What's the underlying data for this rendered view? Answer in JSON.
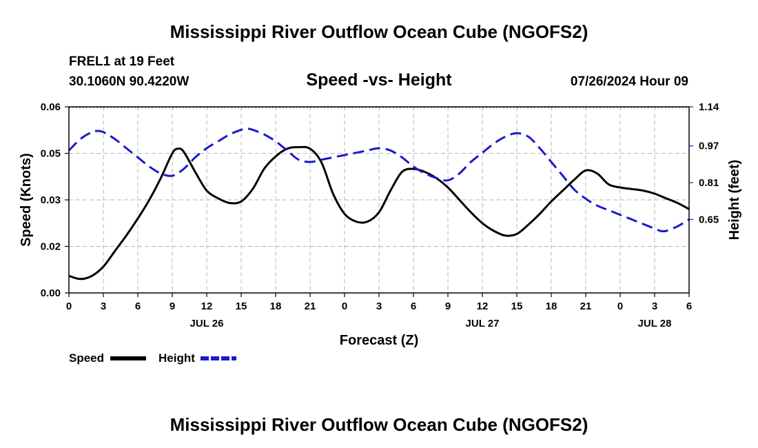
{
  "header": {
    "title": "Mississippi River Outflow Ocean Cube (NGOFS2)",
    "station": "FREL1 at 19 Feet",
    "coords": "30.1060N  90.4220W",
    "subtitle": "Speed -vs- Height",
    "datetime": "07/26/2024 Hour 09"
  },
  "footer": {
    "title": "Mississippi River Outflow Ocean Cube (NGOFS2)"
  },
  "chart_data": {
    "type": "line",
    "title": "Speed -vs- Height",
    "xlabel": "Forecast (Z)",
    "ylabel_left": "Speed (Knots)",
    "ylabel_right": "Height (feet)",
    "x_range_hours": [
      0,
      54
    ],
    "x_ticks": [
      {
        "h": 0,
        "label": "0"
      },
      {
        "h": 3,
        "label": "3"
      },
      {
        "h": 6,
        "label": "6"
      },
      {
        "h": 9,
        "label": "9"
      },
      {
        "h": 12,
        "label": "12"
      },
      {
        "h": 15,
        "label": "15"
      },
      {
        "h": 18,
        "label": "18"
      },
      {
        "h": 21,
        "label": "21"
      },
      {
        "h": 24,
        "label": "0"
      },
      {
        "h": 27,
        "label": "3"
      },
      {
        "h": 30,
        "label": "6"
      },
      {
        "h": 33,
        "label": "9"
      },
      {
        "h": 36,
        "label": "12"
      },
      {
        "h": 39,
        "label": "15"
      },
      {
        "h": 42,
        "label": "18"
      },
      {
        "h": 45,
        "label": "21"
      },
      {
        "h": 48,
        "label": "0"
      },
      {
        "h": 51,
        "label": "3"
      },
      {
        "h": 54,
        "label": "6"
      }
    ],
    "date_labels": [
      {
        "h": 12,
        "label": "JUL 26"
      },
      {
        "h": 36,
        "label": "JUL 27"
      },
      {
        "h": 51,
        "label": "JUL 28"
      }
    ],
    "y_left": {
      "range": [
        0,
        0.06
      ],
      "ticks": [
        {
          "v": 0.0,
          "label": "0.00"
        },
        {
          "v": 0.015,
          "label": "0.02"
        },
        {
          "v": 0.03,
          "label": "0.03"
        },
        {
          "v": 0.045,
          "label": "0.05"
        },
        {
          "v": 0.06,
          "label": "0.06"
        }
      ]
    },
    "y_right": {
      "range": [
        0.33,
        1.14
      ],
      "ticks": [
        {
          "v": 0.65,
          "label": "0.65"
        },
        {
          "v": 0.81,
          "label": "0.81"
        },
        {
          "v": 0.97,
          "label": "0.97"
        },
        {
          "v": 1.14,
          "label": "1.14"
        }
      ]
    },
    "series": [
      {
        "name": "Speed",
        "axis": "left",
        "color": "#000000",
        "style": "solid",
        "x": [
          0,
          1,
          2,
          3,
          4,
          5,
          6,
          7,
          8,
          9,
          9.5,
          10,
          11,
          12,
          13,
          14,
          15,
          16,
          17,
          18,
          19,
          20,
          21,
          22,
          23,
          24,
          25,
          26,
          27,
          28,
          29,
          30,
          31,
          32,
          33,
          34,
          35,
          36,
          37,
          38,
          39,
          40,
          41,
          42,
          43,
          44,
          45,
          46,
          47,
          48,
          49,
          50,
          51,
          52,
          53,
          54
        ],
        "values": [
          0.0055,
          0.0045,
          0.0055,
          0.0085,
          0.0135,
          0.0185,
          0.024,
          0.03,
          0.037,
          0.045,
          0.0465,
          0.0455,
          0.039,
          0.033,
          0.0305,
          0.029,
          0.0295,
          0.0335,
          0.04,
          0.044,
          0.0465,
          0.047,
          0.0465,
          0.042,
          0.032,
          0.0255,
          0.023,
          0.023,
          0.026,
          0.033,
          0.039,
          0.04,
          0.039,
          0.037,
          0.034,
          0.03,
          0.026,
          0.0225,
          0.02,
          0.0185,
          0.019,
          0.022,
          0.0255,
          0.0295,
          0.033,
          0.0365,
          0.0395,
          0.0385,
          0.035,
          0.034,
          0.0335,
          0.033,
          0.032,
          0.0305,
          0.029,
          0.027
        ]
      },
      {
        "name": "Height",
        "axis": "right",
        "color": "#1a1acc",
        "style": "dashed",
        "x": [
          0,
          1,
          2,
          2.5,
          3,
          4,
          5,
          6,
          7,
          8,
          9,
          10,
          11,
          12,
          13,
          14,
          15,
          15.5,
          16,
          17,
          18,
          19,
          20,
          21,
          22,
          23,
          24,
          25,
          26,
          27,
          28,
          29,
          30,
          31,
          32,
          33,
          34,
          35,
          36,
          37,
          38,
          39,
          40,
          41,
          42,
          43,
          44,
          45,
          46,
          47,
          48,
          49,
          50,
          51,
          51.5,
          52,
          53,
          54
        ],
        "values": [
          0.95,
          1.0,
          1.03,
          1.035,
          1.03,
          1.0,
          0.96,
          0.92,
          0.88,
          0.85,
          0.84,
          0.87,
          0.92,
          0.96,
          0.99,
          1.02,
          1.04,
          1.045,
          1.04,
          1.02,
          0.99,
          0.95,
          0.91,
          0.9,
          0.91,
          0.92,
          0.93,
          0.94,
          0.95,
          0.96,
          0.95,
          0.92,
          0.88,
          0.85,
          0.83,
          0.82,
          0.85,
          0.9,
          0.94,
          0.98,
          1.01,
          1.025,
          1.01,
          0.96,
          0.9,
          0.84,
          0.78,
          0.74,
          0.71,
          0.69,
          0.67,
          0.65,
          0.63,
          0.61,
          0.6,
          0.6,
          0.62,
          0.65
        ]
      }
    ],
    "legend": [
      {
        "label": "Speed",
        "color": "#000000",
        "style": "solid"
      },
      {
        "label": "Height",
        "color": "#1a1acc",
        "style": "dashed"
      }
    ],
    "grid": true
  }
}
